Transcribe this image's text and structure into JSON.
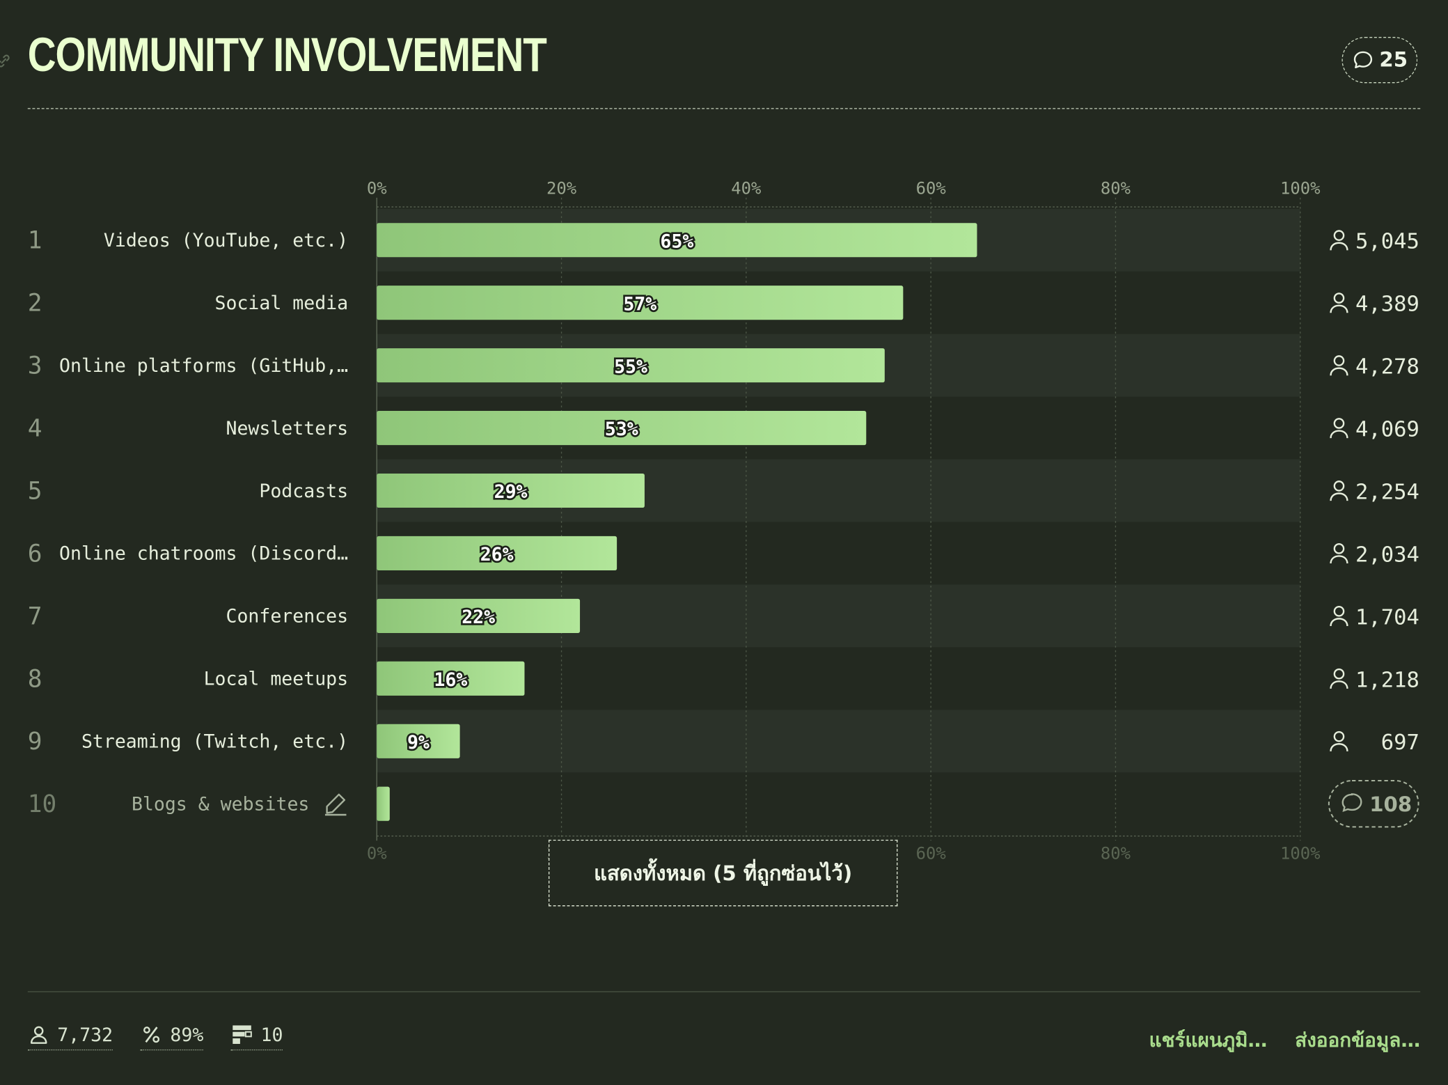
{
  "header": {
    "title": "COMMUNITY INVOLVEMENT",
    "comment_count": "25"
  },
  "chart_data": {
    "type": "bar",
    "orientation": "horizontal",
    "categories": [
      "Videos (YouTube, etc.)",
      "Social media",
      "Online platforms (GitHub,…",
      "Newsletters",
      "Podcasts",
      "Online chatrooms (Discord…",
      "Conferences",
      "Local meetups",
      "Streaming (Twitch, etc.)",
      "Blogs & websites"
    ],
    "ranks": [
      "1",
      "2",
      "3",
      "4",
      "5",
      "6",
      "7",
      "8",
      "9",
      "10"
    ],
    "values": [
      65,
      57,
      55,
      53,
      29,
      26,
      22,
      16,
      9,
      1.4
    ],
    "value_labels": [
      "65%",
      "57%",
      "55%",
      "53%",
      "29%",
      "26%",
      "22%",
      "16%",
      "9%",
      ""
    ],
    "respondents": [
      "5,045",
      "4,389",
      "4,278",
      "4,069",
      "2,254",
      "2,034",
      "1,704",
      "1,218",
      "697",
      ""
    ],
    "last_row_comment_count": "108",
    "xlim": [
      0,
      100
    ],
    "x_ticks": [
      "0%",
      "20%",
      "40%",
      "60%",
      "80%",
      "100%"
    ],
    "grid": true,
    "colors": {
      "bar_start": "#8fc679",
      "bar_end": "#b2e69a",
      "background": "#232920",
      "row_alt": "#2b3229"
    }
  },
  "show_all_label": "แสดงทั้งหมด (5 ที่ถูกซ่อนไว้)",
  "footer": {
    "stats": [
      {
        "icon": "person-icon",
        "value": "7,732"
      },
      {
        "icon": "percent-icon",
        "value": "89%"
      },
      {
        "icon": "list-icon",
        "value": "10"
      }
    ],
    "share_label": "แชร์แผนภูมิ…",
    "export_label": "ส่งออกข้อมูล…"
  }
}
